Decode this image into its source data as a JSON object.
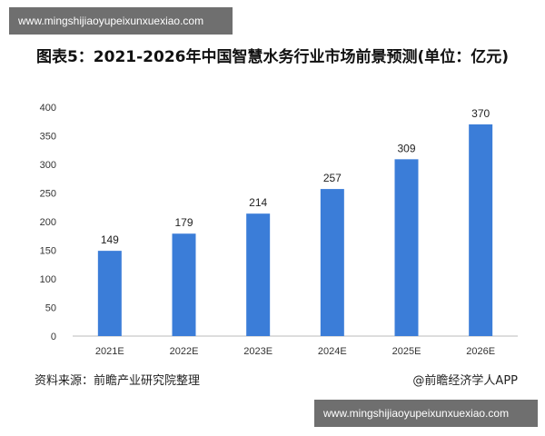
{
  "watermark_top": "www.mingshijiaoyupeixunxuexiao.com",
  "watermark_bottom": "www.mingshijiaoyupeixunxuexiao.com",
  "chart_data": {
    "type": "bar",
    "title": "图表5：2021-2026年中国智慧水务行业市场前景预测(单位：亿元)",
    "categories": [
      "2021E",
      "2022E",
      "2023E",
      "2024E",
      "2025E",
      "2026E"
    ],
    "values": [
      149,
      179,
      214,
      257,
      309,
      370
    ],
    "ylim": [
      0,
      400
    ],
    "yticks": [
      0,
      50,
      100,
      150,
      200,
      250,
      300,
      350,
      400
    ],
    "xlabel": "",
    "ylabel": "",
    "bar_color": "#3b7dd8",
    "grid": false,
    "legend": "none"
  },
  "source": "资料来源：前瞻产业研究院整理",
  "credit": "@前瞻经济学人APP"
}
